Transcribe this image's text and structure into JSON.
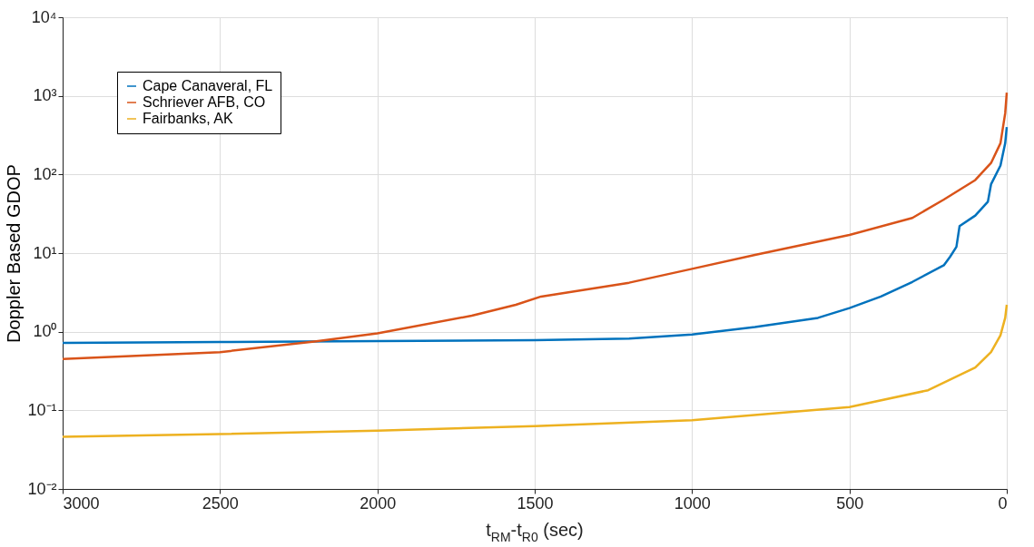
{
  "chart_data": {
    "type": "line",
    "xlabel": "t$_{RM}$-t$_{R0}$ (sec)",
    "ylabel": "Doppler Based GDOP",
    "xlim": [
      3000,
      0
    ],
    "xticks": [
      3000,
      2500,
      2000,
      1500,
      1000,
      500,
      0
    ],
    "ylim": [
      0.01,
      10000
    ],
    "yticks": [
      {
        "value": 0.01,
        "label": "10⁻²"
      },
      {
        "value": 0.1,
        "label": "10⁻¹"
      },
      {
        "value": 1,
        "label": "10⁰"
      },
      {
        "value": 10,
        "label": "10¹"
      },
      {
        "value": 100,
        "label": "10²"
      },
      {
        "value": 1000,
        "label": "10³"
      },
      {
        "value": 10000,
        "label": "10⁴"
      }
    ],
    "log": "y",
    "grid": true,
    "legend": "top left",
    "marker": "none",
    "line_style": "solid",
    "series": [
      {
        "name": "Cape Canaveral, FL",
        "color": "#0072bd",
        "x": [
          3000,
          2500,
          2000,
          1500,
          1200,
          1000,
          800,
          600,
          500,
          400,
          300,
          200,
          180,
          160,
          150,
          100,
          60,
          50,
          20,
          5,
          0
        ],
        "values": [
          0.72,
          0.74,
          0.76,
          0.78,
          0.82,
          0.92,
          1.15,
          1.5,
          2.0,
          2.8,
          4.3,
          7,
          9,
          12,
          22,
          30,
          45,
          75,
          130,
          250,
          400
        ]
      },
      {
        "name": "Schriever AFB, CO",
        "color": "#d95319",
        "x": [
          3000,
          2500,
          2200,
          2000,
          1700,
          1560,
          1480,
          1200,
          1000,
          800,
          500,
          300,
          200,
          100,
          50,
          20,
          5,
          0
        ],
        "values": [
          0.45,
          0.55,
          0.75,
          0.95,
          1.6,
          2.2,
          2.8,
          4.2,
          6.3,
          9.5,
          17,
          28,
          48,
          85,
          140,
          250,
          600,
          1100
        ]
      },
      {
        "name": "Fairbanks, AK",
        "color": "#edb120",
        "x": [
          3000,
          2500,
          2000,
          1500,
          1000,
          500,
          250,
          100,
          50,
          20,
          5,
          0
        ],
        "values": [
          0.046,
          0.05,
          0.055,
          0.063,
          0.075,
          0.11,
          0.18,
          0.35,
          0.55,
          0.9,
          1.5,
          2.2
        ]
      }
    ]
  }
}
